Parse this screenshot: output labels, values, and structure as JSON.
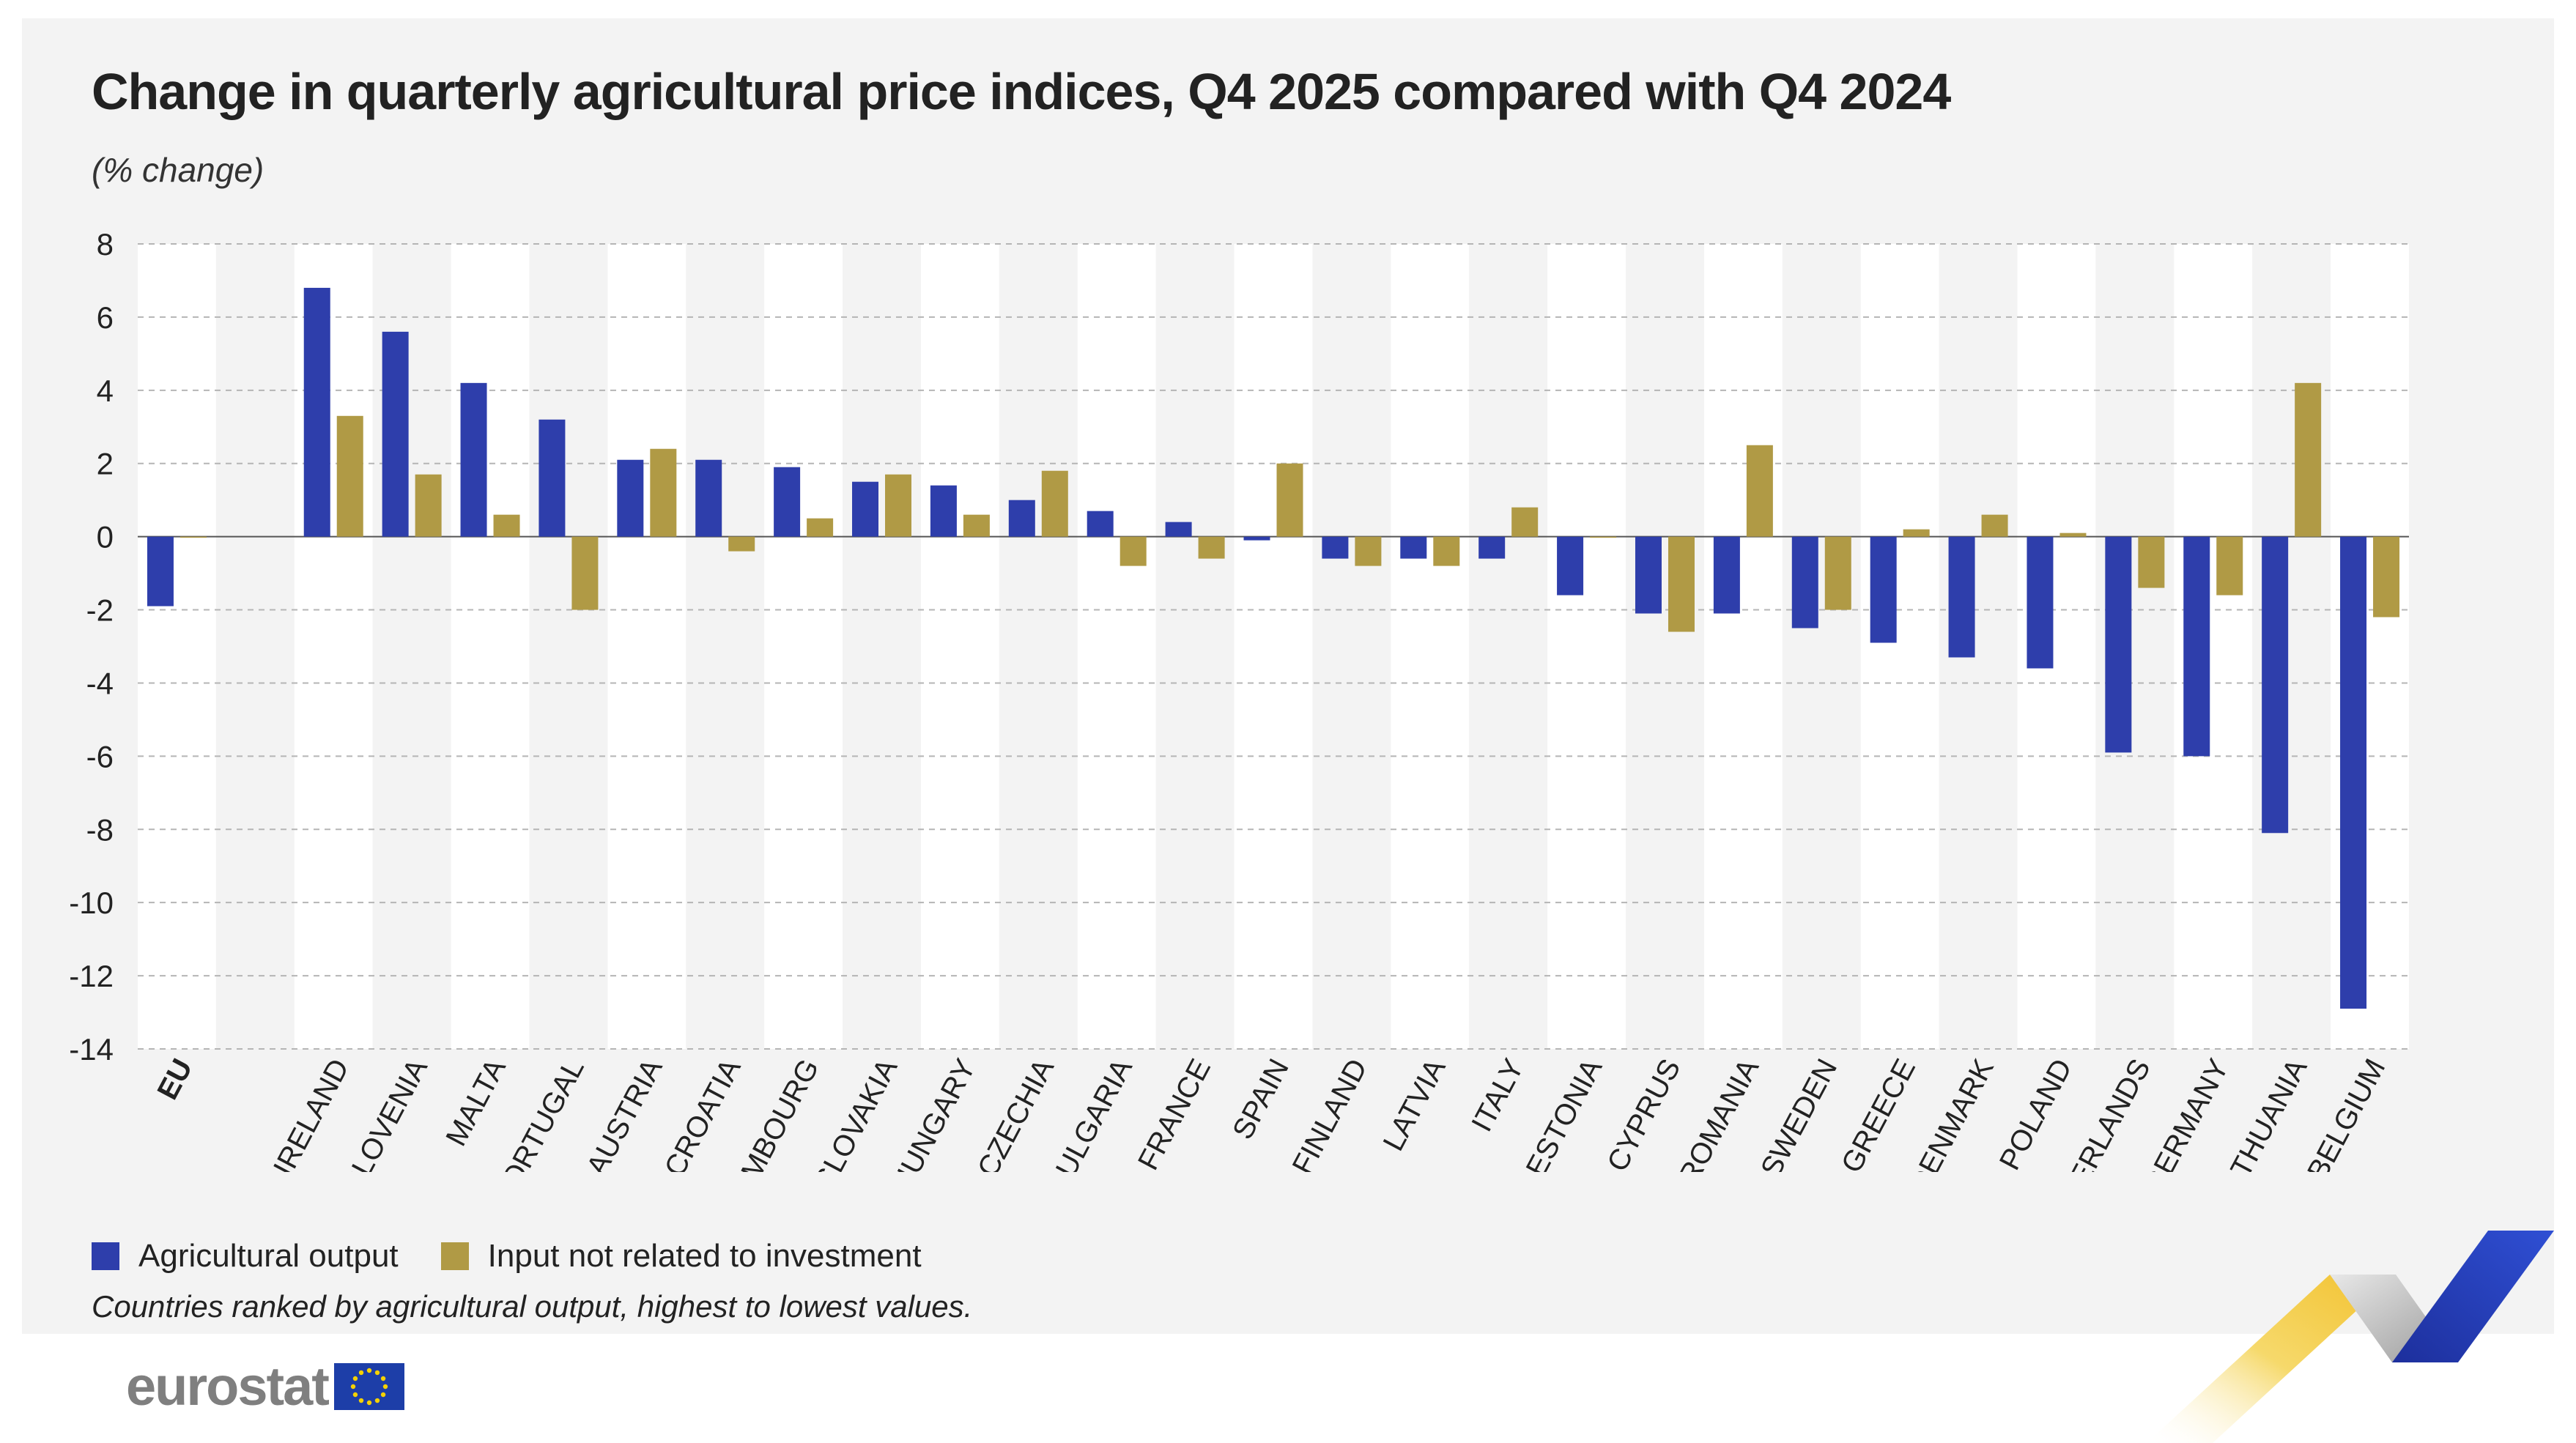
{
  "chart_data": {
    "type": "bar",
    "title": "Change in quarterly agricultural price indices, Q4 2025 compared with Q4 2024",
    "subtitle": "(% change)",
    "categories": [
      "EU",
      "",
      "IRELAND",
      "SLOVENIA",
      "MALTA",
      "PORTUGAL",
      "AUSTRIA",
      "CROATIA",
      "LUXEMBOURG",
      "SLOVAKIA",
      "HUNGARY",
      "CZECHIA",
      "BULGARIA",
      "FRANCE",
      "SPAIN",
      "FINLAND",
      "LATVIA",
      "ITALY",
      "ESTONIA",
      "CYPRUS",
      "ROMANIA",
      "SWEDEN",
      "GREECE",
      "DENMARK",
      "POLAND",
      "NETHERLANDS",
      "GERMANY",
      "LITHUANIA",
      "BELGIUM"
    ],
    "series": [
      {
        "name": "Agricultural output",
        "values": [
          -1.9,
          null,
          6.8,
          5.6,
          4.2,
          3.2,
          2.1,
          2.1,
          1.9,
          1.5,
          1.4,
          1.0,
          0.7,
          0.4,
          -0.1,
          -0.6,
          -0.6,
          -0.6,
          -1.6,
          -2.1,
          -2.1,
          -2.5,
          -2.9,
          -3.3,
          -3.6,
          -5.9,
          -6.0,
          -8.1,
          -12.9
        ]
      },
      {
        "name": "Input not related to investment",
        "values": [
          0.0,
          null,
          3.3,
          1.7,
          0.6,
          -2.0,
          2.4,
          -0.4,
          0.5,
          1.7,
          0.6,
          1.8,
          -0.8,
          -0.6,
          2.0,
          -0.8,
          -0.8,
          0.8,
          0.0,
          -2.6,
          2.5,
          -2.0,
          0.2,
          0.6,
          0.1,
          -1.4,
          -1.6,
          4.2,
          -2.2
        ]
      }
    ],
    "ylim": [
      -14,
      8
    ],
    "yticks": [
      8,
      6,
      4,
      2,
      0,
      -2,
      -4,
      -6,
      -8,
      -10,
      -12,
      -14
    ],
    "grid": true,
    "legend_position": "bottom-left",
    "colors": {
      "Agricultural output": "#2e3eab",
      "Input not related to investment": "#b09a45"
    }
  },
  "note": "Countries ranked by agricultural output, highest to lowest values.",
  "logo": {
    "text": "eurostat"
  }
}
